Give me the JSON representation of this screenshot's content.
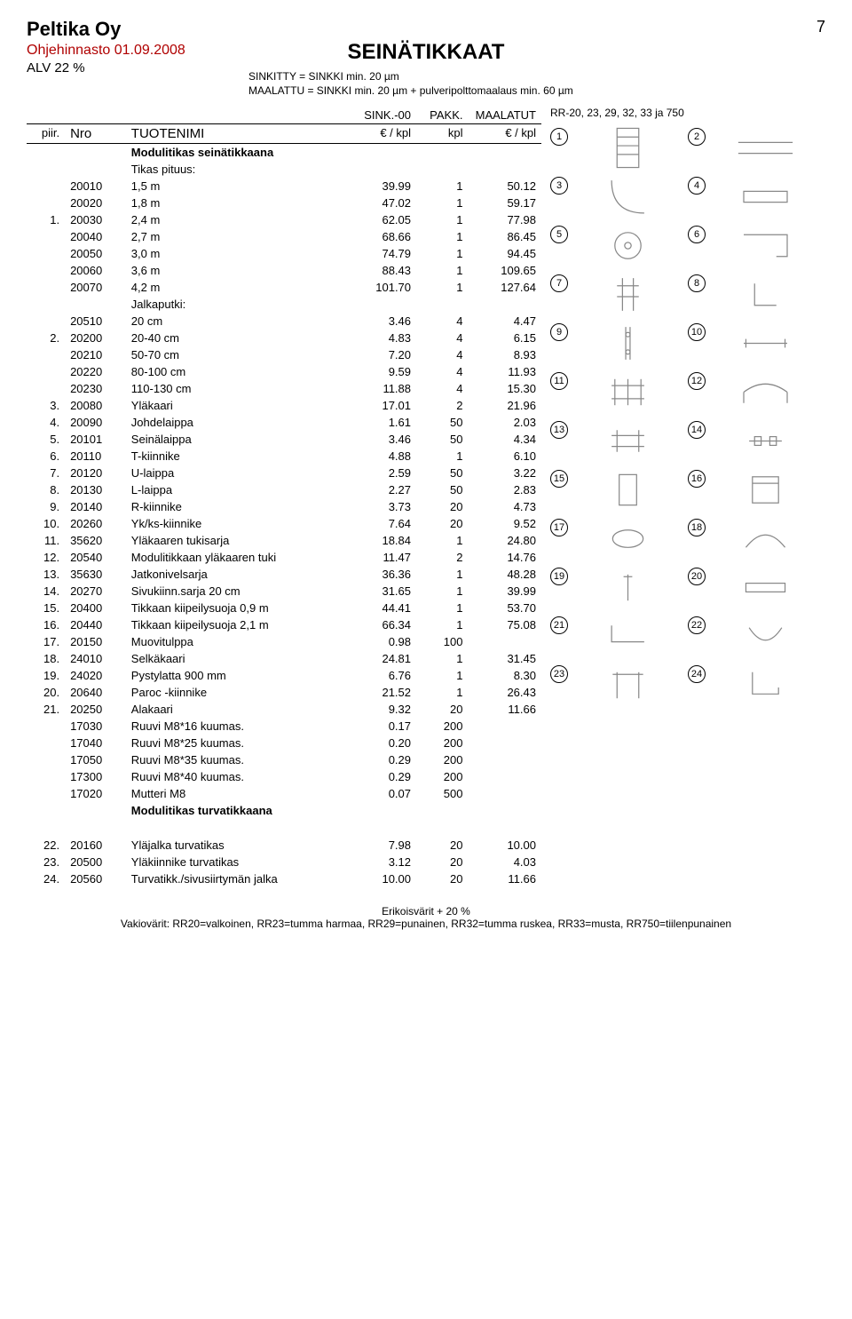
{
  "company": "Peltika Oy",
  "page_number": "7",
  "pricebook_line": "Ohjehinnasto 01.09.2008",
  "alv_line": "ALV 22 %",
  "main_title": "SEINÄTIKKAAT",
  "note1": "SINKITTY = SINKKI min. 20 µm",
  "note2": "MAALATTU = SINKKI min. 20 µm + pulveripolttomaalaus min. 60 µm",
  "col_headers": {
    "piir": "piir.",
    "nro": "Nro",
    "tuote": "TUOTENIMI",
    "sink": "SINK.-00",
    "sink_unit": "€ / kpl",
    "pakk": "PAKK.",
    "pakk_unit": "kpl",
    "maal": "MAALATUT",
    "maal_unit": "€ / kpl"
  },
  "rr_text": "RR-20, 23, 29, 32, 33 ja 750",
  "section1": "Modulitikas seinätikkaana",
  "sub_tikas": "Tikas pituus:",
  "sub_jalka": "Jalkaputki:",
  "section2": "Modulitikas turvatikkaana",
  "rows_a": [
    {
      "p": "",
      "n": "20010",
      "name": "1,5 m",
      "s": "39.99",
      "k": "1",
      "m": "50.12"
    },
    {
      "p": "",
      "n": "20020",
      "name": "1,8 m",
      "s": "47.02",
      "k": "1",
      "m": "59.17"
    },
    {
      "p": "1.",
      "n": "20030",
      "name": "2,4 m",
      "s": "62.05",
      "k": "1",
      "m": "77.98"
    },
    {
      "p": "",
      "n": "20040",
      "name": "2,7 m",
      "s": "68.66",
      "k": "1",
      "m": "86.45"
    },
    {
      "p": "",
      "n": "20050",
      "name": "3,0 m",
      "s": "74.79",
      "k": "1",
      "m": "94.45"
    },
    {
      "p": "",
      "n": "20060",
      "name": "3,6 m",
      "s": "88.43",
      "k": "1",
      "m": "109.65"
    },
    {
      "p": "",
      "n": "20070",
      "name": "4,2 m",
      "s": "101.70",
      "k": "1",
      "m": "127.64"
    }
  ],
  "rows_b": [
    {
      "p": "",
      "n": "20510",
      "name": "20 cm",
      "s": "3.46",
      "k": "4",
      "m": "4.47"
    },
    {
      "p": "2.",
      "n": "20200",
      "name": "20-40 cm",
      "s": "4.83",
      "k": "4",
      "m": "6.15"
    },
    {
      "p": "",
      "n": "20210",
      "name": "50-70 cm",
      "s": "7.20",
      "k": "4",
      "m": "8.93"
    },
    {
      "p": "",
      "n": "20220",
      "name": "80-100 cm",
      "s": "9.59",
      "k": "4",
      "m": "11.93"
    },
    {
      "p": "",
      "n": "20230",
      "name": "110-130 cm",
      "s": "11.88",
      "k": "4",
      "m": "15.30"
    }
  ],
  "rows_c": [
    {
      "p": "3.",
      "n": "20080",
      "name": "Yläkaari",
      "s": "17.01",
      "k": "2",
      "m": "21.96"
    },
    {
      "p": "4.",
      "n": "20090",
      "name": "Johdelaippa",
      "s": "1.61",
      "k": "50",
      "m": "2.03"
    },
    {
      "p": "5.",
      "n": "20101",
      "name": "Seinälaippa",
      "s": "3.46",
      "k": "50",
      "m": "4.34"
    },
    {
      "p": "6.",
      "n": "20110",
      "name": "T-kiinnike",
      "s": "4.88",
      "k": "1",
      "m": "6.10"
    },
    {
      "p": "7.",
      "n": "20120",
      "name": "U-laippa",
      "s": "2.59",
      "k": "50",
      "m": "3.22"
    },
    {
      "p": "8.",
      "n": "20130",
      "name": "L-laippa",
      "s": "2.27",
      "k": "50",
      "m": "2.83"
    },
    {
      "p": "9.",
      "n": "20140",
      "name": "R-kiinnike",
      "s": "3.73",
      "k": "20",
      "m": "4.73"
    },
    {
      "p": "10.",
      "n": "20260",
      "name": "Yk/ks-kiinnike",
      "s": "7.64",
      "k": "20",
      "m": "9.52"
    },
    {
      "p": "11.",
      "n": "35620",
      "name": "Yläkaaren tukisarja",
      "s": "18.84",
      "k": "1",
      "m": "24.80"
    },
    {
      "p": "12.",
      "n": "20540",
      "name": "Modulitikkaan yläkaaren tuki",
      "s": "11.47",
      "k": "2",
      "m": "14.76"
    },
    {
      "p": "13.",
      "n": "35630",
      "name": "Jatkonivelsarja",
      "s": "36.36",
      "k": "1",
      "m": "48.28"
    },
    {
      "p": "14.",
      "n": "20270",
      "name": "Sivukiinn.sarja 20 cm",
      "s": "31.65",
      "k": "1",
      "m": "39.99"
    },
    {
      "p": "15.",
      "n": "20400",
      "name": "Tikkaan kiipeilysuoja 0,9 m",
      "s": "44.41",
      "k": "1",
      "m": "53.70"
    },
    {
      "p": "16.",
      "n": "20440",
      "name": "Tikkaan kiipeilysuoja 2,1 m",
      "s": "66.34",
      "k": "1",
      "m": "75.08"
    },
    {
      "p": "17.",
      "n": "20150",
      "name": "Muovitulppa",
      "s": "0.98",
      "k": "100",
      "m": ""
    },
    {
      "p": "18.",
      "n": "24010",
      "name": "Selkäkaari",
      "s": "24.81",
      "k": "1",
      "m": "31.45"
    },
    {
      "p": "19.",
      "n": "24020",
      "name": "Pystylatta 900 mm",
      "s": "6.76",
      "k": "1",
      "m": "8.30"
    },
    {
      "p": "20.",
      "n": "20640",
      "name": "Paroc -kiinnike",
      "s": "21.52",
      "k": "1",
      "m": "26.43"
    },
    {
      "p": "21.",
      "n": "20250",
      "name": "Alakaari",
      "s": "9.32",
      "k": "20",
      "m": "11.66"
    },
    {
      "p": "",
      "n": "17030",
      "name": "Ruuvi M8*16 kuumas.",
      "s": "0.17",
      "k": "200",
      "m": ""
    },
    {
      "p": "",
      "n": "17040",
      "name": "Ruuvi M8*25 kuumas.",
      "s": "0.20",
      "k": "200",
      "m": ""
    },
    {
      "p": "",
      "n": "17050",
      "name": "Ruuvi M8*35 kuumas.",
      "s": "0.29",
      "k": "200",
      "m": ""
    },
    {
      "p": "",
      "n": "17300",
      "name": "Ruuvi M8*40 kuumas.",
      "s": "0.29",
      "k": "200",
      "m": ""
    },
    {
      "p": "",
      "n": "17020",
      "name": "Mutteri M8",
      "s": "0.07",
      "k": "500",
      "m": ""
    }
  ],
  "rows_d": [
    {
      "p": "22.",
      "n": "20160",
      "name": "Yläjalka turvatikas",
      "s": "7.98",
      "k": "20",
      "m": "10.00"
    },
    {
      "p": "23.",
      "n": "20500",
      "name": "Yläkiinnike turvatikas",
      "s": "3.12",
      "k": "20",
      "m": "4.03"
    },
    {
      "p": "24.",
      "n": "20560",
      "name": "Turvatikk./sivusiirtymän jalka",
      "s": "10.00",
      "k": "20",
      "m": "11.66"
    }
  ],
  "image_labels": [
    "1",
    "2",
    "3",
    "4",
    "5",
    "6",
    "7",
    "8",
    "9",
    "10",
    "11",
    "12",
    "13",
    "14",
    "15",
    "16",
    "17",
    "18",
    "19",
    "20",
    "21",
    "22",
    "23",
    "24"
  ],
  "footer1": "Erikoisvärit + 20 %",
  "footer2": "Vakiovärit: RR20=valkoinen, RR23=tumma harmaa, RR29=punainen, RR32=tumma ruskea, RR33=musta, RR750=tiilenpunainen"
}
